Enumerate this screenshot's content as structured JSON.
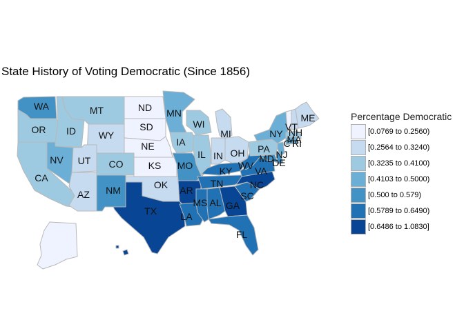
{
  "title": "State History of Voting Democratic (Since 1856)",
  "legend": {
    "title": "Percentage Democratic",
    "items": [
      {
        "label": "[0.0769 to 0.2560)",
        "color": "#eff3ff"
      },
      {
        "label": "[0.2564 to 0.3240)",
        "color": "#c6dbef"
      },
      {
        "label": "[0.3235 to 0.4100)",
        "color": "#9ecae1"
      },
      {
        "label": "[0.4103 to 0.5000)",
        "color": "#6baed6"
      },
      {
        "label": "[0.500 to 0.579)",
        "color": "#4292c6"
      },
      {
        "label": "[0.5789 to 0.6490)",
        "color": "#2171b5"
      },
      {
        "label": "[0.6486 to 1.0830]",
        "color": "#084594"
      }
    ]
  },
  "states": [
    {
      "code": "WA",
      "bin": 4
    },
    {
      "code": "OR",
      "bin": 2
    },
    {
      "code": "CA",
      "bin": 2
    },
    {
      "code": "ID",
      "bin": 2
    },
    {
      "code": "NV",
      "bin": 3
    },
    {
      "code": "MT",
      "bin": 2
    },
    {
      "code": "WY",
      "bin": 1
    },
    {
      "code": "UT",
      "bin": 1
    },
    {
      "code": "AZ",
      "bin": 1
    },
    {
      "code": "CO",
      "bin": 2
    },
    {
      "code": "NM",
      "bin": 4
    },
    {
      "code": "ND",
      "bin": 0
    },
    {
      "code": "SD",
      "bin": 0
    },
    {
      "code": "NE",
      "bin": 0
    },
    {
      "code": "KS",
      "bin": 0
    },
    {
      "code": "OK",
      "bin": 1
    },
    {
      "code": "TX",
      "bin": 6
    },
    {
      "code": "MN",
      "bin": 3
    },
    {
      "code": "IA",
      "bin": 2
    },
    {
      "code": "MO",
      "bin": 4
    },
    {
      "code": "AR",
      "bin": 6
    },
    {
      "code": "LA",
      "bin": 5
    },
    {
      "code": "WI",
      "bin": 2
    },
    {
      "code": "IL",
      "bin": 2
    },
    {
      "code": "MI",
      "bin": 1
    },
    {
      "code": "IN",
      "bin": 1
    },
    {
      "code": "OH",
      "bin": 1
    },
    {
      "code": "KY",
      "bin": 5
    },
    {
      "code": "TN",
      "bin": 5
    },
    {
      "code": "MS",
      "bin": 5
    },
    {
      "code": "AL",
      "bin": 5
    },
    {
      "code": "GA",
      "bin": 6
    },
    {
      "code": "FL",
      "bin": 5
    },
    {
      "code": "SC",
      "bin": 5
    },
    {
      "code": "NC",
      "bin": 6
    },
    {
      "code": "VA",
      "bin": 5
    },
    {
      "code": "WV",
      "bin": 5
    },
    {
      "code": "PA",
      "bin": 2
    },
    {
      "code": "NY",
      "bin": 3
    },
    {
      "code": "MD",
      "bin": 4
    },
    {
      "code": "DE",
      "bin": 4
    },
    {
      "code": "NJ",
      "bin": 3
    },
    {
      "code": "CT",
      "bin": 3
    },
    {
      "code": "RI",
      "bin": 3
    },
    {
      "code": "MA",
      "bin": 2
    },
    {
      "code": "VT",
      "bin": 0
    },
    {
      "code": "NH",
      "bin": 1
    },
    {
      "code": "ME",
      "bin": 1
    },
    {
      "code": "AK",
      "bin": 0
    },
    {
      "code": "HI",
      "bin": 6
    }
  ]
}
